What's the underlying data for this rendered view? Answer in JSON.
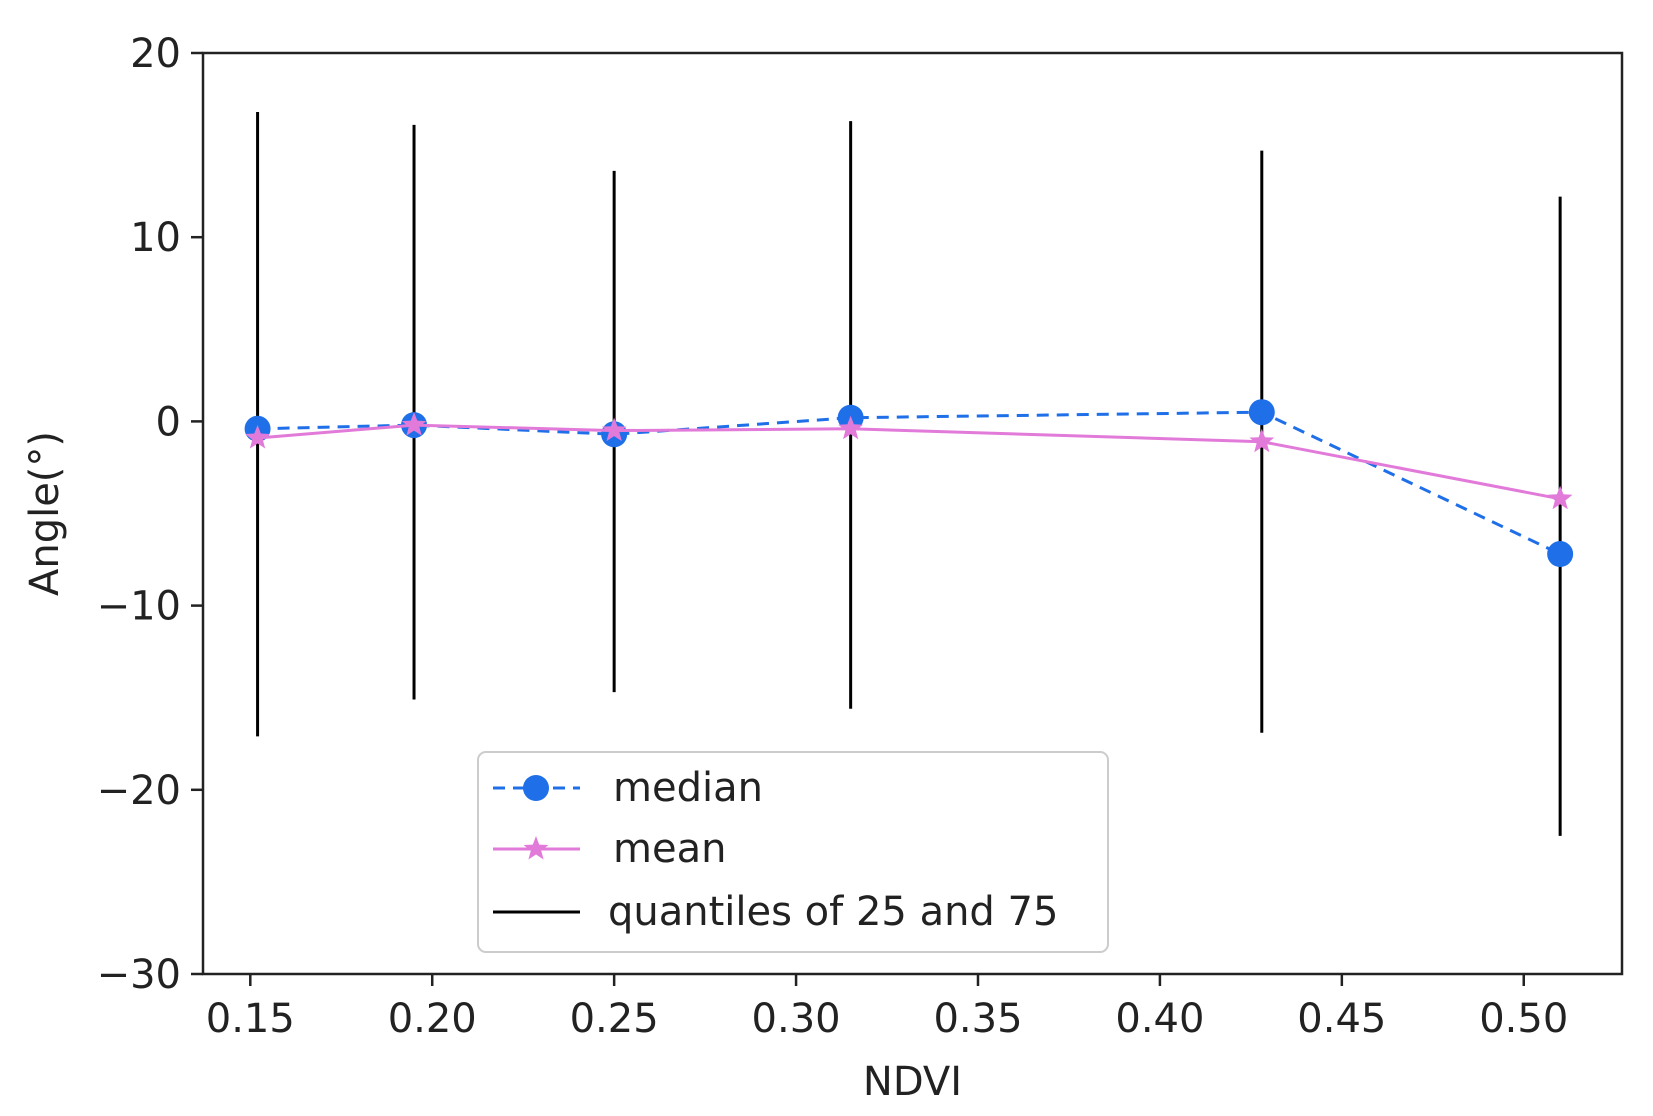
{
  "chart_data": {
    "type": "line",
    "title": "",
    "xlabel": "NDVI",
    "ylabel": "Angle(°)",
    "xlim": [
      0.137,
      0.527
    ],
    "ylim": [
      -30,
      20
    ],
    "xticks": [
      0.15,
      0.2,
      0.25,
      0.3,
      0.35,
      0.4,
      0.45,
      0.5
    ],
    "xtick_labels": [
      "0.15",
      "0.20",
      "0.25",
      "0.30",
      "0.35",
      "0.40",
      "0.45",
      "0.50"
    ],
    "yticks": [
      -30,
      -20,
      -10,
      0,
      10,
      20
    ],
    "ytick_labels": [
      "−30",
      "−20",
      "−10",
      "0",
      "10",
      "20"
    ],
    "grid": false,
    "legend_placement": "lower-center",
    "x": [
      0.152,
      0.195,
      0.25,
      0.315,
      0.428,
      0.51
    ],
    "series": [
      {
        "name": "median",
        "style": "dashed",
        "marker": "circle",
        "color": "#1f6fe8",
        "values": [
          -0.4,
          -0.2,
          -0.7,
          0.2,
          0.5,
          -7.2
        ]
      },
      {
        "name": "mean",
        "style": "solid",
        "marker": "star",
        "color": "#e27ad9",
        "values": [
          -0.9,
          -0.2,
          -0.5,
          -0.4,
          -1.1,
          -4.2
        ]
      }
    ],
    "quantiles": {
      "name": "quantiles of 25 and 75",
      "color": "#000000",
      "q25": [
        -17.1,
        -15.1,
        -14.7,
        -15.6,
        -16.9,
        -22.5
      ],
      "q75": [
        16.8,
        16.1,
        13.6,
        16.3,
        14.7,
        12.2
      ]
    }
  }
}
